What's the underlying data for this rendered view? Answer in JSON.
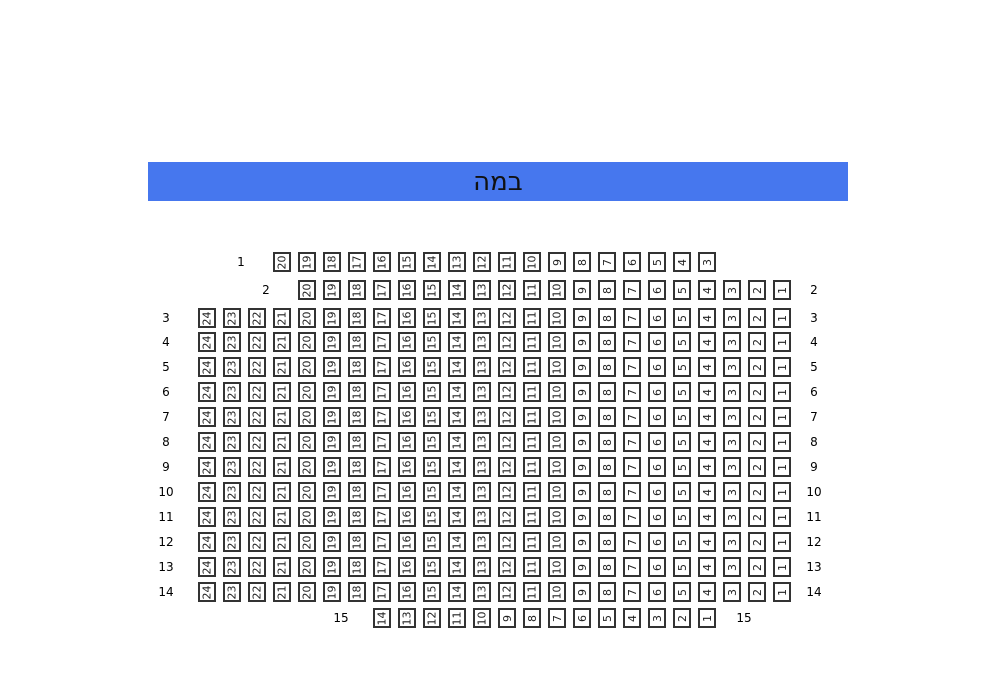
{
  "stage": {
    "label": "במה",
    "color": "#4677ee"
  },
  "rows": [
    {
      "label": "1",
      "seats": [
        20,
        19,
        18,
        17,
        16,
        15,
        14,
        13,
        12,
        11,
        10,
        9,
        8,
        7,
        6,
        5,
        4,
        3
      ],
      "left_label": true,
      "right_label": false
    },
    {
      "label": "2",
      "seats": [
        20,
        19,
        18,
        17,
        16,
        15,
        14,
        13,
        12,
        11,
        10,
        9,
        8,
        7,
        6,
        5,
        4,
        3,
        2,
        1
      ],
      "left_label": true,
      "right_label": true
    },
    {
      "label": "3",
      "seats": [
        24,
        23,
        22,
        21,
        20,
        19,
        18,
        17,
        16,
        15,
        14,
        13,
        12,
        11,
        10,
        9,
        8,
        7,
        6,
        5,
        4,
        3,
        2,
        1
      ],
      "left_label": true,
      "right_label": true
    },
    {
      "label": "4",
      "seats": [
        24,
        23,
        22,
        21,
        20,
        19,
        18,
        17,
        16,
        15,
        14,
        13,
        12,
        11,
        10,
        9,
        8,
        7,
        6,
        5,
        4,
        3,
        2,
        1
      ],
      "left_label": true,
      "right_label": true
    },
    {
      "label": "5",
      "seats": [
        24,
        23,
        22,
        21,
        20,
        19,
        18,
        17,
        16,
        15,
        14,
        13,
        12,
        11,
        10,
        9,
        8,
        7,
        6,
        5,
        4,
        3,
        2,
        1
      ],
      "left_label": true,
      "right_label": true
    },
    {
      "label": "6",
      "seats": [
        24,
        23,
        22,
        21,
        20,
        19,
        18,
        17,
        16,
        15,
        14,
        13,
        12,
        11,
        10,
        9,
        8,
        7,
        6,
        5,
        4,
        3,
        2,
        1
      ],
      "left_label": true,
      "right_label": true
    },
    {
      "label": "7",
      "seats": [
        24,
        23,
        22,
        21,
        20,
        19,
        18,
        17,
        16,
        15,
        14,
        13,
        12,
        11,
        10,
        9,
        8,
        7,
        6,
        5,
        4,
        3,
        2,
        1
      ],
      "left_label": true,
      "right_label": true
    },
    {
      "label": "8",
      "seats": [
        24,
        23,
        22,
        21,
        20,
        19,
        18,
        17,
        16,
        15,
        14,
        13,
        12,
        11,
        10,
        9,
        8,
        7,
        6,
        5,
        4,
        3,
        2,
        1
      ],
      "left_label": true,
      "right_label": true
    },
    {
      "label": "9",
      "seats": [
        24,
        23,
        22,
        21,
        20,
        19,
        18,
        17,
        16,
        15,
        14,
        13,
        12,
        11,
        10,
        9,
        8,
        7,
        6,
        5,
        4,
        3,
        2,
        1
      ],
      "left_label": true,
      "right_label": true
    },
    {
      "label": "10",
      "seats": [
        24,
        23,
        22,
        21,
        20,
        19,
        18,
        17,
        16,
        15,
        14,
        13,
        12,
        11,
        10,
        9,
        8,
        7,
        6,
        5,
        4,
        3,
        2,
        1
      ],
      "left_label": true,
      "right_label": true
    },
    {
      "label": "11",
      "seats": [
        24,
        23,
        22,
        21,
        20,
        19,
        18,
        17,
        16,
        15,
        14,
        13,
        12,
        11,
        10,
        9,
        8,
        7,
        6,
        5,
        4,
        3,
        2,
        1
      ],
      "left_label": true,
      "right_label": true
    },
    {
      "label": "12",
      "seats": [
        24,
        23,
        22,
        21,
        20,
        19,
        18,
        17,
        16,
        15,
        14,
        13,
        12,
        11,
        10,
        9,
        8,
        7,
        6,
        5,
        4,
        3,
        2,
        1
      ],
      "left_label": true,
      "right_label": true
    },
    {
      "label": "13",
      "seats": [
        24,
        23,
        22,
        21,
        20,
        19,
        18,
        17,
        16,
        15,
        14,
        13,
        12,
        11,
        10,
        9,
        8,
        7,
        6,
        5,
        4,
        3,
        2,
        1
      ],
      "left_label": true,
      "right_label": true
    },
    {
      "label": "14",
      "seats": [
        24,
        23,
        22,
        21,
        20,
        19,
        18,
        17,
        16,
        15,
        14,
        13,
        12,
        11,
        10,
        9,
        8,
        7,
        6,
        5,
        4,
        3,
        2,
        1
      ],
      "left_label": true,
      "right_label": true
    },
    {
      "label": "15",
      "seats": [
        14,
        13,
        12,
        11,
        10,
        9,
        8,
        7,
        6,
        5,
        4,
        3,
        2,
        1
      ],
      "left_label": true,
      "right_label": true
    }
  ]
}
